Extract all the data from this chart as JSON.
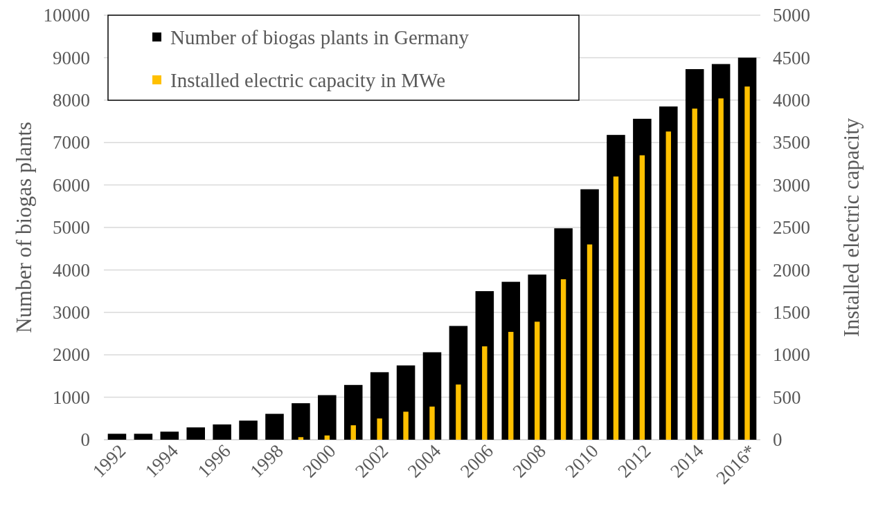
{
  "chart_data": {
    "type": "bar",
    "ylabel": "Number of biogas plants",
    "y2label": "Installed electric capacity",
    "categories": [
      "1992",
      null,
      "1994",
      null,
      "1996",
      null,
      "1998",
      null,
      "2000",
      null,
      "2002",
      null,
      "2004",
      null,
      "2006",
      null,
      "2008",
      null,
      "2010",
      null,
      "2012",
      null,
      "2014",
      null,
      "2016*"
    ],
    "series": [
      {
        "name": "Number of biogas plants in Germany",
        "color": "#000000",
        "values": [
          140,
          140,
          190,
          290,
          360,
          450,
          610,
          860,
          1050,
          1290,
          1590,
          1750,
          2060,
          2680,
          3500,
          3720,
          3890,
          4980,
          5900,
          7180,
          7560,
          7850,
          8730,
          8850,
          9000
        ]
      },
      {
        "name": "Installed electric capacity in MWe",
        "color": "#ffc000",
        "axis": "y2",
        "values": [
          null,
          null,
          null,
          null,
          null,
          null,
          null,
          30,
          50,
          170,
          250,
          330,
          390,
          650,
          1100,
          1270,
          1390,
          1890,
          2300,
          3100,
          3350,
          3630,
          3900,
          4020,
          4160
        ]
      }
    ],
    "ylim": [
      0,
      10000
    ],
    "yticks": [
      0,
      1000,
      2000,
      3000,
      4000,
      5000,
      6000,
      7000,
      8000,
      9000,
      10000
    ],
    "y2lim": [
      0,
      5000
    ],
    "y2ticks": [
      0,
      500,
      1000,
      1500,
      2000,
      2500,
      3000,
      3500,
      4000,
      4500,
      5000
    ],
    "grid": "y",
    "legend": "top left"
  }
}
